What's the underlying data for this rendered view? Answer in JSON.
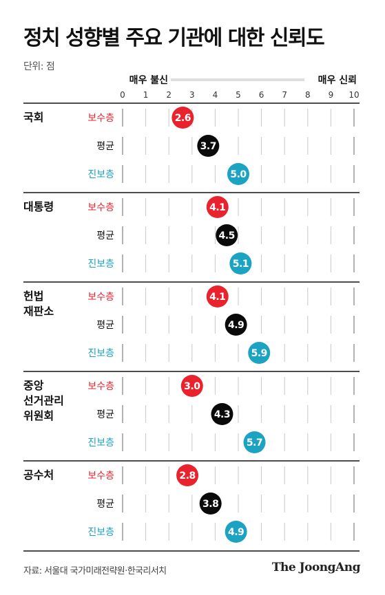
{
  "title": "정치 성향별 주요 기관에 대한 신뢰도",
  "unit": "단위: 점",
  "source": "자료: 서울대 국가미래전략원·한국리서치",
  "brand": "The JoongAng",
  "chart_data": {
    "type": "dot",
    "scale_low_label": "매우 불신",
    "scale_high_label": "매우 신뢰",
    "x_ticks": [
      "0",
      "1",
      "2",
      "3",
      "4",
      "5",
      "6",
      "7",
      "8",
      "9",
      "10"
    ],
    "xlim": [
      0,
      10
    ],
    "colors": {
      "보수층": "#e8232d",
      "평균": "#0a0a0a",
      "진보층": "#1ca3c2"
    },
    "groups": [
      {
        "name": [
          "국회"
        ],
        "rows": [
          {
            "label": "보수층",
            "value": 2.6,
            "text": "2.6"
          },
          {
            "label": "평균",
            "value": 3.7,
            "text": "3.7"
          },
          {
            "label": "진보층",
            "value": 5.0,
            "text": "5.0"
          }
        ]
      },
      {
        "name": [
          "대통령"
        ],
        "rows": [
          {
            "label": "보수층",
            "value": 4.1,
            "text": "4.1"
          },
          {
            "label": "평균",
            "value": 4.5,
            "text": "4.5"
          },
          {
            "label": "진보층",
            "value": 5.1,
            "text": "5.1"
          }
        ]
      },
      {
        "name": [
          "헌법",
          "재판소"
        ],
        "rows": [
          {
            "label": "보수층",
            "value": 4.1,
            "text": "4.1"
          },
          {
            "label": "평균",
            "value": 4.9,
            "text": "4.9"
          },
          {
            "label": "진보층",
            "value": 5.9,
            "text": "5.9"
          }
        ]
      },
      {
        "name": [
          "중앙",
          "선거관리",
          "위원회"
        ],
        "rows": [
          {
            "label": "보수층",
            "value": 3.0,
            "text": "3.0"
          },
          {
            "label": "평균",
            "value": 4.3,
            "text": "4.3"
          },
          {
            "label": "진보층",
            "value": 5.7,
            "text": "5.7"
          }
        ]
      },
      {
        "name": [
          "공수처"
        ],
        "rows": [
          {
            "label": "보수층",
            "value": 2.8,
            "text": "2.8"
          },
          {
            "label": "평균",
            "value": 3.8,
            "text": "3.8"
          },
          {
            "label": "진보층",
            "value": 4.9,
            "text": "4.9"
          }
        ]
      }
    ]
  }
}
